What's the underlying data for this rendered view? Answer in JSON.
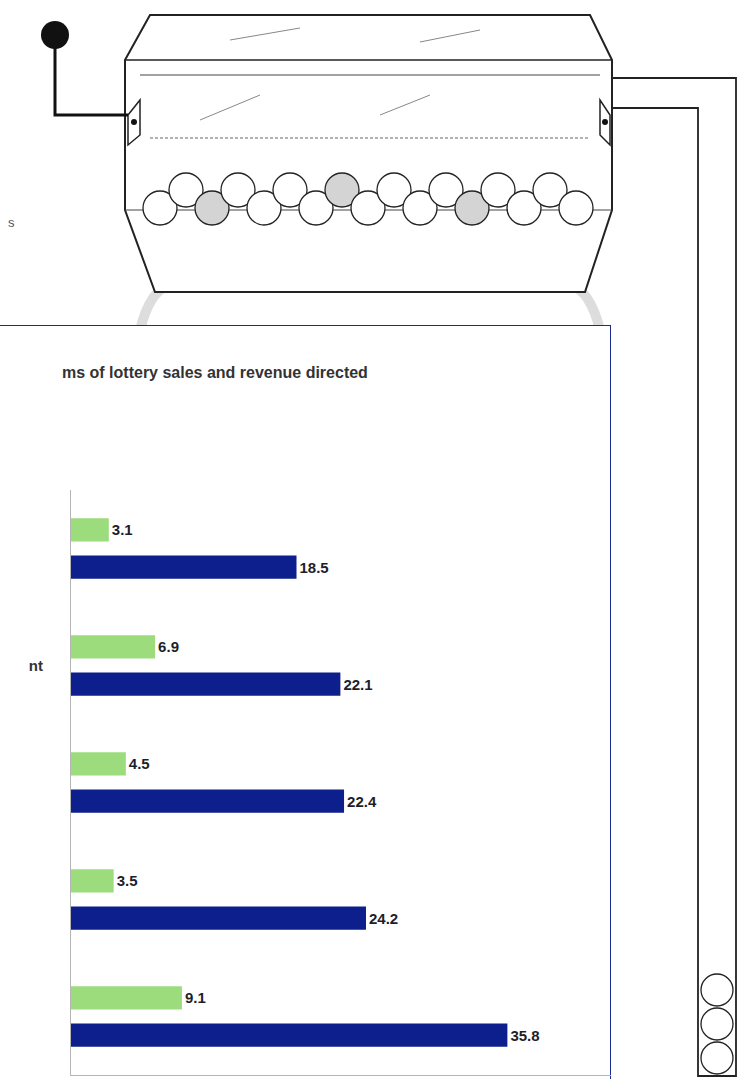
{
  "chart_data": {
    "type": "bar",
    "orientation": "horizontal",
    "title": "ms of lottery sales and revenue directed",
    "categories": [
      null,
      "nt",
      null,
      null,
      null
    ],
    "series": [
      {
        "color": "#9cdc7c",
        "values": [
          3.1,
          6.9,
          4.5,
          3.5,
          9.1
        ]
      },
      {
        "color": "#0d1f8c",
        "values": [
          18.5,
          22.1,
          22.4,
          24.2,
          35.8
        ]
      }
    ],
    "xlim": [
      0,
      44.3
    ],
    "xticks": [],
    "tick_labels": "y",
    "data_labels": true,
    "grid": false,
    "annotations": [
      "s"
    ]
  }
}
